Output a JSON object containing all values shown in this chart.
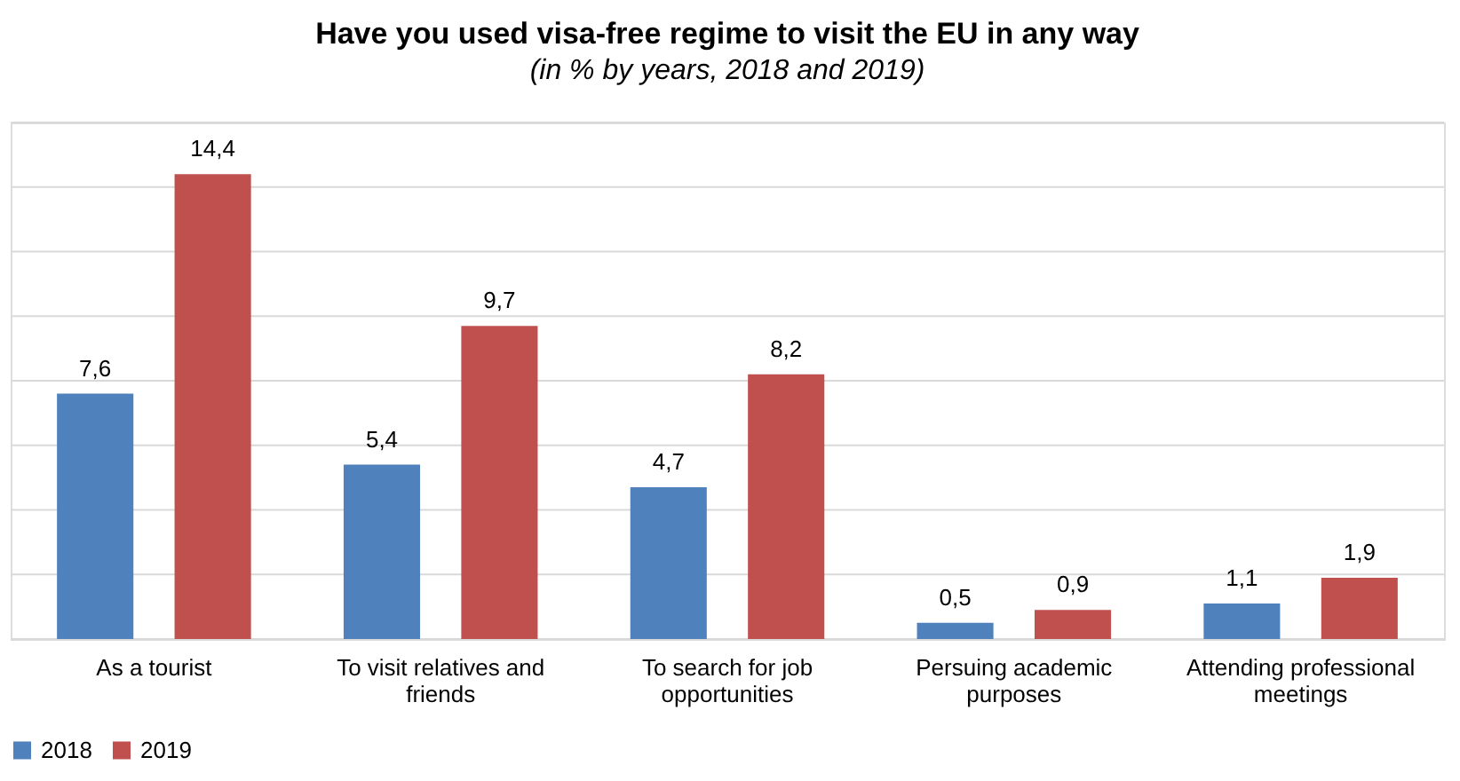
{
  "chart_data": {
    "type": "bar",
    "title": "Have you used visa-free regime to visit the EU in any way",
    "subtitle": "(in % by years, 2018 and 2019)",
    "categories": [
      "As a tourist",
      "To visit relatives and friends",
      "To search for job opportunities",
      "Persuing academic purposes",
      "Attending professional meetings"
    ],
    "series": [
      {
        "name": "2018",
        "color": "#4f81bd",
        "values": [
          7.6,
          5.4,
          4.7,
          0.5,
          1.1
        ],
        "value_labels": [
          "7,6",
          "5,4",
          "4,7",
          "0,5",
          "1,1"
        ]
      },
      {
        "name": "2019",
        "color": "#c0504d",
        "values": [
          14.4,
          9.7,
          8.2,
          0.9,
          1.9
        ],
        "value_labels": [
          "14,4",
          "9,7",
          "8,2",
          "0,9",
          "1,9"
        ]
      }
    ],
    "ylim": [
      0,
      16
    ],
    "yticks": [
      {
        "value": 0,
        "label": null
      },
      {
        "value": 2,
        "label": null
      },
      {
        "value": 4,
        "label": null
      },
      {
        "value": 6,
        "label": null
      },
      {
        "value": 8,
        "label": null
      },
      {
        "value": 10,
        "label": null
      },
      {
        "value": 12,
        "label": null
      },
      {
        "value": 14,
        "label": null
      },
      {
        "value": 16,
        "label": null
      }
    ],
    "grid": "y",
    "legend": "bottom",
    "tick_labels": "x"
  }
}
